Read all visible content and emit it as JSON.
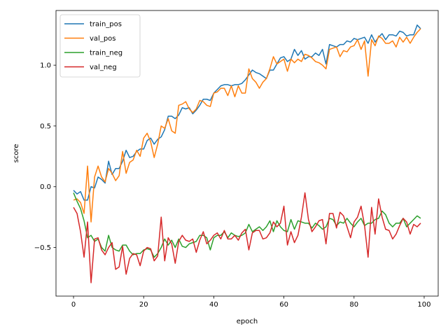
{
  "chart_data": {
    "type": "line",
    "xlabel": "epoch",
    "ylabel": "score",
    "xlim": [
      -5,
      104
    ],
    "ylim": [
      -0.9,
      1.45
    ],
    "xticks": [
      0,
      20,
      40,
      60,
      80,
      100
    ],
    "yticks": [
      -0.5,
      0.0,
      0.5,
      1.0
    ],
    "grid": false,
    "legend_position": "upper left",
    "x": [
      0,
      1,
      2,
      3,
      4,
      5,
      6,
      7,
      8,
      9,
      10,
      11,
      12,
      13,
      14,
      15,
      16,
      17,
      18,
      19,
      20,
      21,
      22,
      23,
      24,
      25,
      26,
      27,
      28,
      29,
      30,
      31,
      32,
      33,
      34,
      35,
      36,
      37,
      38,
      39,
      40,
      41,
      42,
      43,
      44,
      45,
      46,
      47,
      48,
      49,
      50,
      51,
      52,
      53,
      54,
      55,
      56,
      57,
      58,
      59,
      60,
      61,
      62,
      63,
      64,
      65,
      66,
      67,
      68,
      69,
      70,
      71,
      72,
      73,
      74,
      75,
      76,
      77,
      78,
      79,
      80,
      81,
      82,
      83,
      84,
      85,
      86,
      87,
      88,
      89,
      90,
      91,
      92,
      93,
      94,
      95,
      96,
      97,
      98,
      99
    ],
    "series": [
      {
        "name": "train_pos",
        "color": "#1f77b4",
        "values": [
          -0.03,
          -0.06,
          -0.04,
          -0.11,
          -0.11,
          0.0,
          -0.01,
          0.08,
          0.06,
          0.03,
          0.21,
          0.1,
          0.15,
          0.15,
          0.21,
          0.3,
          0.24,
          0.25,
          0.29,
          0.31,
          0.31,
          0.38,
          0.4,
          0.35,
          0.39,
          0.41,
          0.47,
          0.58,
          0.58,
          0.56,
          0.59,
          0.65,
          0.64,
          0.65,
          0.6,
          0.63,
          0.67,
          0.72,
          0.72,
          0.71,
          0.77,
          0.8,
          0.83,
          0.84,
          0.84,
          0.83,
          0.84,
          0.84,
          0.85,
          0.88,
          0.92,
          0.96,
          0.94,
          0.93,
          0.91,
          0.89,
          0.96,
          0.96,
          1.01,
          1.06,
          1.07,
          1.03,
          1.05,
          1.13,
          1.08,
          1.12,
          1.05,
          1.07,
          1.07,
          1.1,
          1.08,
          1.13,
          1.01,
          1.17,
          1.16,
          1.15,
          1.17,
          1.17,
          1.2,
          1.19,
          1.22,
          1.21,
          1.22,
          1.23,
          1.18,
          1.25,
          1.19,
          1.23,
          1.26,
          1.21,
          1.25,
          1.25,
          1.24,
          1.28,
          1.27,
          1.24,
          1.25,
          1.25,
          1.33,
          1.3
        ]
      },
      {
        "name": "val_pos",
        "color": "#ff7f0e",
        "values": [
          -0.11,
          -0.1,
          -0.13,
          -0.22,
          0.17,
          -0.29,
          0.08,
          0.17,
          0.08,
          0.04,
          0.15,
          0.11,
          0.05,
          0.09,
          0.29,
          0.11,
          0.2,
          0.22,
          0.3,
          0.25,
          0.4,
          0.44,
          0.37,
          0.24,
          0.35,
          0.5,
          0.48,
          0.56,
          0.46,
          0.44,
          0.67,
          0.68,
          0.7,
          0.64,
          0.61,
          0.64,
          0.71,
          0.7,
          0.67,
          0.66,
          0.77,
          0.78,
          0.81,
          0.81,
          0.75,
          0.83,
          0.74,
          0.83,
          0.77,
          0.77,
          0.97,
          0.89,
          0.86,
          0.81,
          0.86,
          0.89,
          0.97,
          1.07,
          1.01,
          1.03,
          1.05,
          0.95,
          1.05,
          1.02,
          1.05,
          1.03,
          1.09,
          1.08,
          1.06,
          1.03,
          1.02,
          1.0,
          0.97,
          1.13,
          1.14,
          1.15,
          1.07,
          1.12,
          1.11,
          1.15,
          1.16,
          1.21,
          1.13,
          1.2,
          0.91,
          1.21,
          1.16,
          1.24,
          1.22,
          1.18,
          1.18,
          1.2,
          1.15,
          1.23,
          1.19,
          1.23,
          1.18,
          1.23,
          1.27,
          1.3
        ]
      },
      {
        "name": "train_neg",
        "color": "#2ca02c",
        "values": [
          -0.05,
          -0.12,
          -0.18,
          -0.28,
          -0.42,
          -0.4,
          -0.45,
          -0.43,
          -0.5,
          -0.53,
          -0.4,
          -0.5,
          -0.52,
          -0.53,
          -0.48,
          -0.48,
          -0.53,
          -0.56,
          -0.55,
          -0.55,
          -0.52,
          -0.51,
          -0.52,
          -0.58,
          -0.55,
          -0.5,
          -0.43,
          -0.48,
          -0.44,
          -0.5,
          -0.43,
          -0.49,
          -0.5,
          -0.47,
          -0.46,
          -0.45,
          -0.4,
          -0.4,
          -0.42,
          -0.52,
          -0.42,
          -0.4,
          -0.4,
          -0.37,
          -0.42,
          -0.38,
          -0.4,
          -0.41,
          -0.4,
          -0.38,
          -0.31,
          -0.37,
          -0.35,
          -0.33,
          -0.36,
          -0.33,
          -0.28,
          -0.37,
          -0.28,
          -0.33,
          -0.36,
          -0.37,
          -0.27,
          -0.35,
          -0.28,
          -0.29,
          -0.3,
          -0.3,
          -0.34,
          -0.3,
          -0.32,
          -0.35,
          -0.33,
          -0.26,
          -0.27,
          -0.32,
          -0.29,
          -0.3,
          -0.26,
          -0.3,
          -0.33,
          -0.29,
          -0.26,
          -0.32,
          -0.3,
          -0.3,
          -0.27,
          -0.26,
          -0.2,
          -0.23,
          -0.3,
          -0.33,
          -0.3,
          -0.3,
          -0.26,
          -0.33,
          -0.3,
          -0.27,
          -0.24,
          -0.26
        ]
      },
      {
        "name": "val_neg",
        "color": "#d62728",
        "values": [
          -0.17,
          -0.22,
          -0.37,
          -0.58,
          -0.29,
          -0.79,
          -0.43,
          -0.42,
          -0.52,
          -0.56,
          -0.5,
          -0.46,
          -0.68,
          -0.66,
          -0.49,
          -0.72,
          -0.59,
          -0.55,
          -0.56,
          -0.65,
          -0.53,
          -0.5,
          -0.51,
          -0.61,
          -0.57,
          -0.25,
          -0.61,
          -0.42,
          -0.47,
          -0.63,
          -0.45,
          -0.4,
          -0.44,
          -0.45,
          -0.43,
          -0.54,
          -0.44,
          -0.37,
          -0.47,
          -0.44,
          -0.4,
          -0.38,
          -0.43,
          -0.36,
          -0.43,
          -0.43,
          -0.4,
          -0.44,
          -0.38,
          -0.35,
          -0.52,
          -0.38,
          -0.36,
          -0.36,
          -0.43,
          -0.42,
          -0.38,
          -0.29,
          -0.33,
          -0.3,
          -0.16,
          -0.48,
          -0.37,
          -0.46,
          -0.4,
          -0.25,
          -0.05,
          -0.27,
          -0.37,
          -0.33,
          -0.28,
          -0.27,
          -0.47,
          -0.22,
          -0.22,
          -0.34,
          -0.21,
          -0.24,
          -0.33,
          -0.42,
          -0.29,
          -0.25,
          -0.16,
          -0.32,
          -0.58,
          -0.17,
          -0.39,
          -0.1,
          -0.25,
          -0.35,
          -0.36,
          -0.43,
          -0.39,
          -0.32,
          -0.26,
          -0.29,
          -0.39,
          -0.31,
          -0.33,
          -0.3
        ]
      }
    ]
  }
}
